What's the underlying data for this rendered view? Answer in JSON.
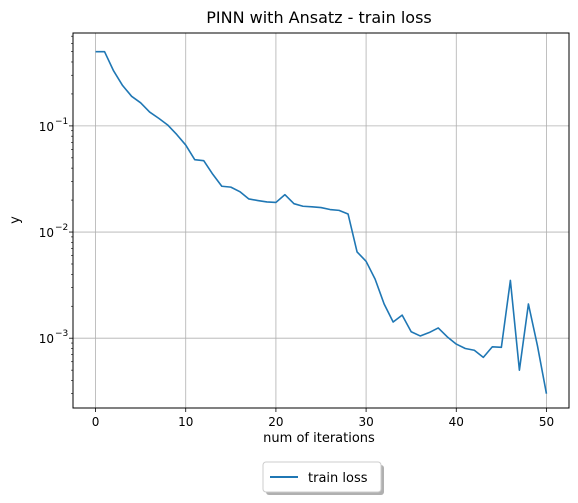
{
  "chart_data": {
    "type": "line",
    "title": "PINN with Ansatz - train loss",
    "xlabel": "num of iterations",
    "ylabel": "y",
    "yscale": "log",
    "xlim": [
      -2.5,
      52.5
    ],
    "ylim": [
      0.00022,
      0.75
    ],
    "grid": true,
    "legend_position": "bottom-center, below the axes",
    "x_ticks": [
      {
        "value": 0,
        "label": "0"
      },
      {
        "value": 10,
        "label": "10"
      },
      {
        "value": 20,
        "label": "20"
      },
      {
        "value": 30,
        "label": "30"
      },
      {
        "value": 40,
        "label": "40"
      },
      {
        "value": 50,
        "label": "50"
      }
    ],
    "y_ticks": [
      {
        "value": 0.1,
        "base": "10",
        "exp": "−1"
      },
      {
        "value": 0.01,
        "base": "10",
        "exp": "−2"
      },
      {
        "value": 0.001,
        "base": "10",
        "exp": "−3"
      }
    ],
    "series": [
      {
        "name": "train loss",
        "color": "#1f77b4",
        "x": [
          0,
          1,
          2,
          3,
          4,
          5,
          6,
          7,
          8,
          9,
          10,
          11,
          12,
          13,
          14,
          15,
          16,
          17,
          18,
          19,
          20,
          21,
          22,
          23,
          24,
          25,
          26,
          27,
          28,
          29,
          30,
          31,
          32,
          33,
          34,
          35,
          36,
          37,
          38,
          39,
          40,
          41,
          42,
          43,
          44,
          45,
          46,
          47,
          48,
          49,
          50
        ],
        "y": [
          0.5,
          0.5,
          0.33,
          0.24,
          0.19,
          0.165,
          0.135,
          0.118,
          0.102,
          0.083,
          0.066,
          0.048,
          0.047,
          0.035,
          0.027,
          0.0265,
          0.024,
          0.0205,
          0.0198,
          0.0192,
          0.019,
          0.0225,
          0.0185,
          0.0175,
          0.0173,
          0.017,
          0.0163,
          0.016,
          0.0148,
          0.0065,
          0.0053,
          0.0036,
          0.0021,
          0.00142,
          0.00165,
          0.00115,
          0.00105,
          0.00113,
          0.00125,
          0.00103,
          0.00088,
          0.0008,
          0.00077,
          0.00066,
          0.00083,
          0.00082,
          0.0035,
          0.0005,
          0.0021,
          0.00085,
          0.0003
        ]
      }
    ]
  }
}
